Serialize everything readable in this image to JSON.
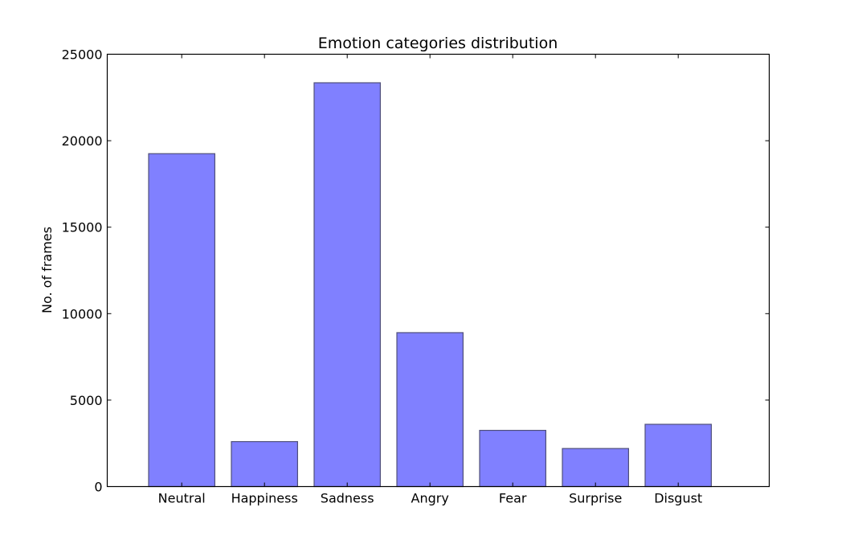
{
  "chart_data": {
    "type": "bar",
    "title": "Emotion categories distribution",
    "xlabel": "",
    "ylabel": "No. of frames",
    "categories": [
      "Neutral",
      "Happiness",
      "Sadness",
      "Angry",
      "Fear",
      "Surprise",
      "Disgust"
    ],
    "values": [
      19250,
      2600,
      23350,
      8900,
      3250,
      2200,
      3600
    ],
    "ylim": [
      0,
      25000
    ],
    "yticks": [
      0,
      5000,
      10000,
      15000,
      20000,
      25000
    ],
    "ytick_labels": [
      "0",
      "5000",
      "10000",
      "15000",
      "20000",
      "25000"
    ],
    "grid": false,
    "bar_color": "#8080ff",
    "bar_edge_color": "#50507a"
  }
}
